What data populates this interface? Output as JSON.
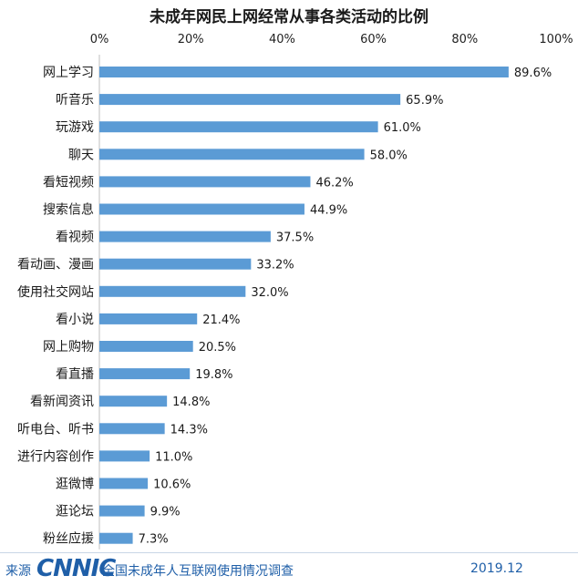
{
  "chart_data": {
    "type": "bar",
    "orientation": "horizontal",
    "title": "未成年网民上网经常从事各类活动的比例",
    "xlabel": "",
    "ylabel": "",
    "xlim": [
      0,
      100
    ],
    "x_ticks": [
      "0%",
      "20%",
      "40%",
      "60%",
      "80%",
      "100%"
    ],
    "categories": [
      "网上学习",
      "听音乐",
      "玩游戏",
      "聊天",
      "看短视频",
      "搜索信息",
      "看视频",
      "看动画、漫画",
      "使用社交网站",
      "看小说",
      "网上购物",
      "看直播",
      "看新闻资讯",
      "听电台、听书",
      "进行内容创作",
      "逛微博",
      "逛论坛",
      "粉丝应援"
    ],
    "values": [
      89.6,
      65.9,
      61.0,
      58.0,
      46.2,
      44.9,
      37.5,
      33.2,
      32.0,
      21.4,
      20.5,
      19.8,
      14.8,
      14.3,
      11.0,
      10.6,
      9.9,
      7.3
    ],
    "value_labels": [
      "89.6%",
      "65.9%",
      "61.0%",
      "58.0%",
      "46.2%",
      "44.9%",
      "37.5%",
      "33.2%",
      "32.0%",
      "21.4%",
      "20.5%",
      "19.8%",
      "14.8%",
      "14.3%",
      "11.0%",
      "10.6%",
      "9.9%",
      "7.3%"
    ],
    "grid": false,
    "bar_color": "#5b9bd5"
  },
  "footer": {
    "source_label": "来源",
    "logo_text": "CNNIC",
    "report_title": "全国未成年人互联网使用情况调查",
    "date": "2019.12"
  }
}
